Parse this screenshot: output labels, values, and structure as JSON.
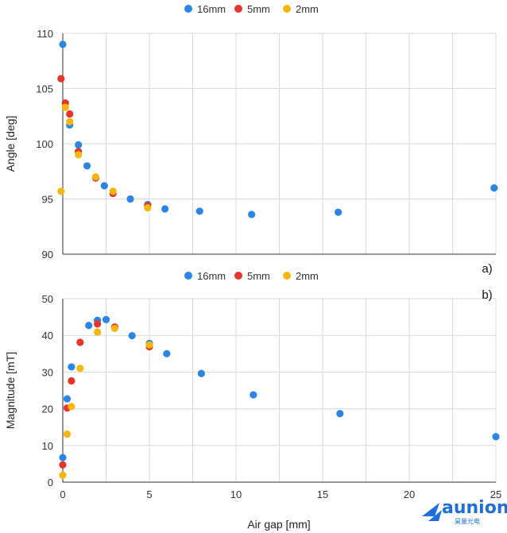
{
  "colors": {
    "s16": "#2a86e6",
    "s5": "#e8352b",
    "s2": "#f6b60c",
    "grid": "#d9d9d9"
  },
  "footer": {
    "xlabel": "Air gap [mm]",
    "logo_text": "aunion",
    "logo_sub": "昊量光电"
  },
  "chart_data": [
    {
      "type": "scatter",
      "panel_label": "a)",
      "xlabel": "",
      "ylabel": "Angle [deg]",
      "xlim": [
        0,
        25
      ],
      "ylim": [
        90,
        110
      ],
      "xticks": [
        0,
        5,
        10,
        15,
        20,
        25
      ],
      "yticks": [
        90,
        95,
        100,
        105,
        110
      ],
      "show_xtick_labels": false,
      "legend": {
        "position": "top-center",
        "entries": [
          "16mm",
          "5mm",
          "2mm"
        ]
      },
      "series": [
        {
          "name": "16mm",
          "color_key": "s16",
          "x": [
            0,
            0.4,
            0.9,
            1.4,
            2.4,
            3.9,
            4.9,
            5.9,
            7.9,
            10.9,
            15.9,
            24.9
          ],
          "y": [
            109.0,
            101.7,
            99.9,
            98.0,
            96.2,
            95.0,
            94.5,
            94.1,
            93.9,
            93.6,
            93.8,
            96.0
          ]
        },
        {
          "name": "5mm",
          "color_key": "s5",
          "x": [
            -0.1,
            0.15,
            0.4,
            0.9,
            1.9,
            2.9,
            4.9
          ],
          "y": [
            105.9,
            103.7,
            102.7,
            99.3,
            96.9,
            95.5,
            94.4
          ]
        },
        {
          "name": "2mm",
          "color_key": "s2",
          "x": [
            -0.1,
            0.15,
            0.4,
            0.9,
            1.9,
            2.9,
            4.9
          ],
          "y": [
            95.7,
            103.3,
            102.0,
            99.0,
            97.0,
            95.7,
            94.2
          ]
        }
      ]
    },
    {
      "type": "scatter",
      "panel_label": "b)",
      "xlabel": "Air gap [mm]",
      "ylabel": "Magnitude [mT]",
      "xlim": [
        0,
        25
      ],
      "ylim": [
        0,
        50
      ],
      "xticks": [
        0,
        5,
        10,
        15,
        20,
        25
      ],
      "yticks": [
        0,
        10,
        20,
        30,
        40,
        50
      ],
      "show_xtick_labels": true,
      "legend": {
        "position": "top-center",
        "entries": [
          "16mm",
          "5mm",
          "2mm"
        ]
      },
      "series": [
        {
          "name": "16mm",
          "color_key": "s16",
          "x": [
            0,
            0.25,
            0.5,
            1.5,
            2.0,
            2.5,
            4.0,
            5.0,
            6.0,
            8.0,
            11.0,
            16.0,
            25.0
          ],
          "y": [
            6.7,
            22.7,
            31.4,
            42.7,
            44.1,
            44.3,
            39.9,
            37.8,
            35.0,
            29.6,
            23.8,
            18.7,
            12.4
          ]
        },
        {
          "name": "5mm",
          "color_key": "s5",
          "x": [
            0,
            0.25,
            0.5,
            1.0,
            2.0,
            3.0,
            5.0
          ],
          "y": [
            4.7,
            20.2,
            27.6,
            38.1,
            43.1,
            42.3,
            36.9
          ]
        },
        {
          "name": "2mm",
          "color_key": "s2",
          "x": [
            0,
            0.25,
            0.5,
            1.0,
            2.0,
            3.0,
            5.0
          ],
          "y": [
            1.9,
            13.1,
            20.6,
            31.0,
            40.9,
            41.9,
            37.4
          ]
        }
      ]
    }
  ]
}
